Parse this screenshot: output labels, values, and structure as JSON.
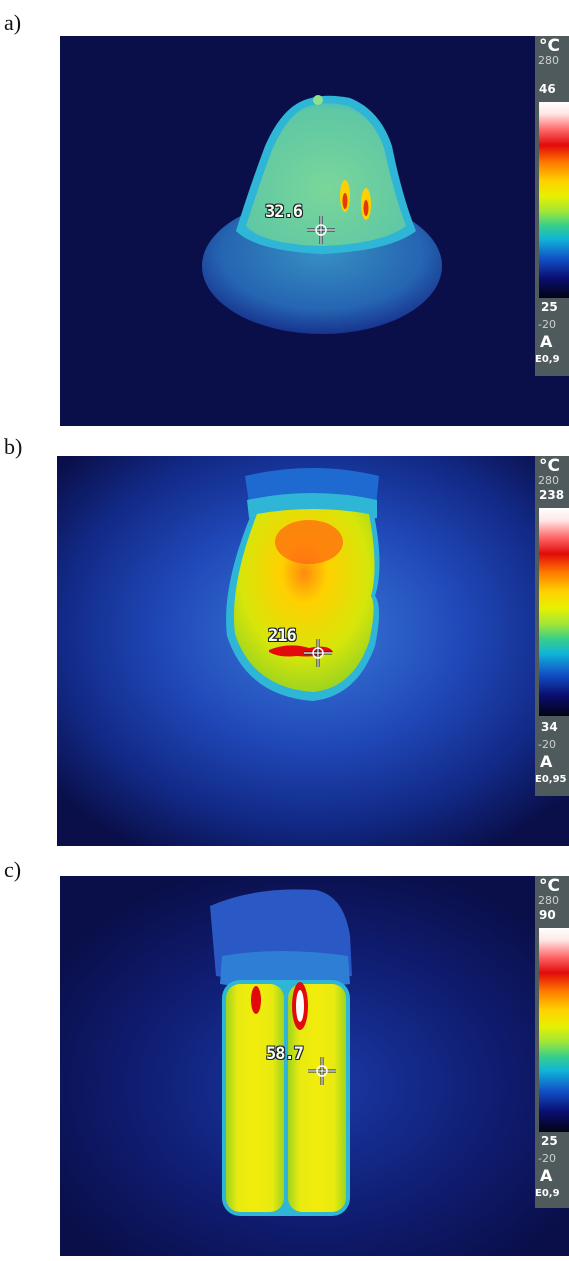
{
  "panels": [
    {
      "label": "a)",
      "spot_reading": "32.6",
      "scale": {
        "unit": "°C",
        "range_top": "280",
        "max": "46",
        "min": "25",
        "range_bottom": "-20",
        "mode": "A",
        "emissivity": "E0,9"
      }
    },
    {
      "label": "b)",
      "spot_reading": "216",
      "scale": {
        "unit": "°C",
        "range_top": "280",
        "max": "238",
        "min": "34",
        "range_bottom": "-20",
        "mode": "A",
        "emissivity": "E0,95"
      }
    },
    {
      "label": "c)",
      "spot_reading": "58.7",
      "scale": {
        "unit": "°C",
        "range_top": "280",
        "max": "90",
        "min": "25",
        "range_bottom": "-20",
        "mode": "A",
        "emissivity": "E0,9"
      }
    }
  ],
  "palette": {
    "background": "#0b1150",
    "hot": "#e20a0a",
    "warm": "#ffd000",
    "mid": "#37cf8a",
    "cool": "#10b4d8"
  }
}
